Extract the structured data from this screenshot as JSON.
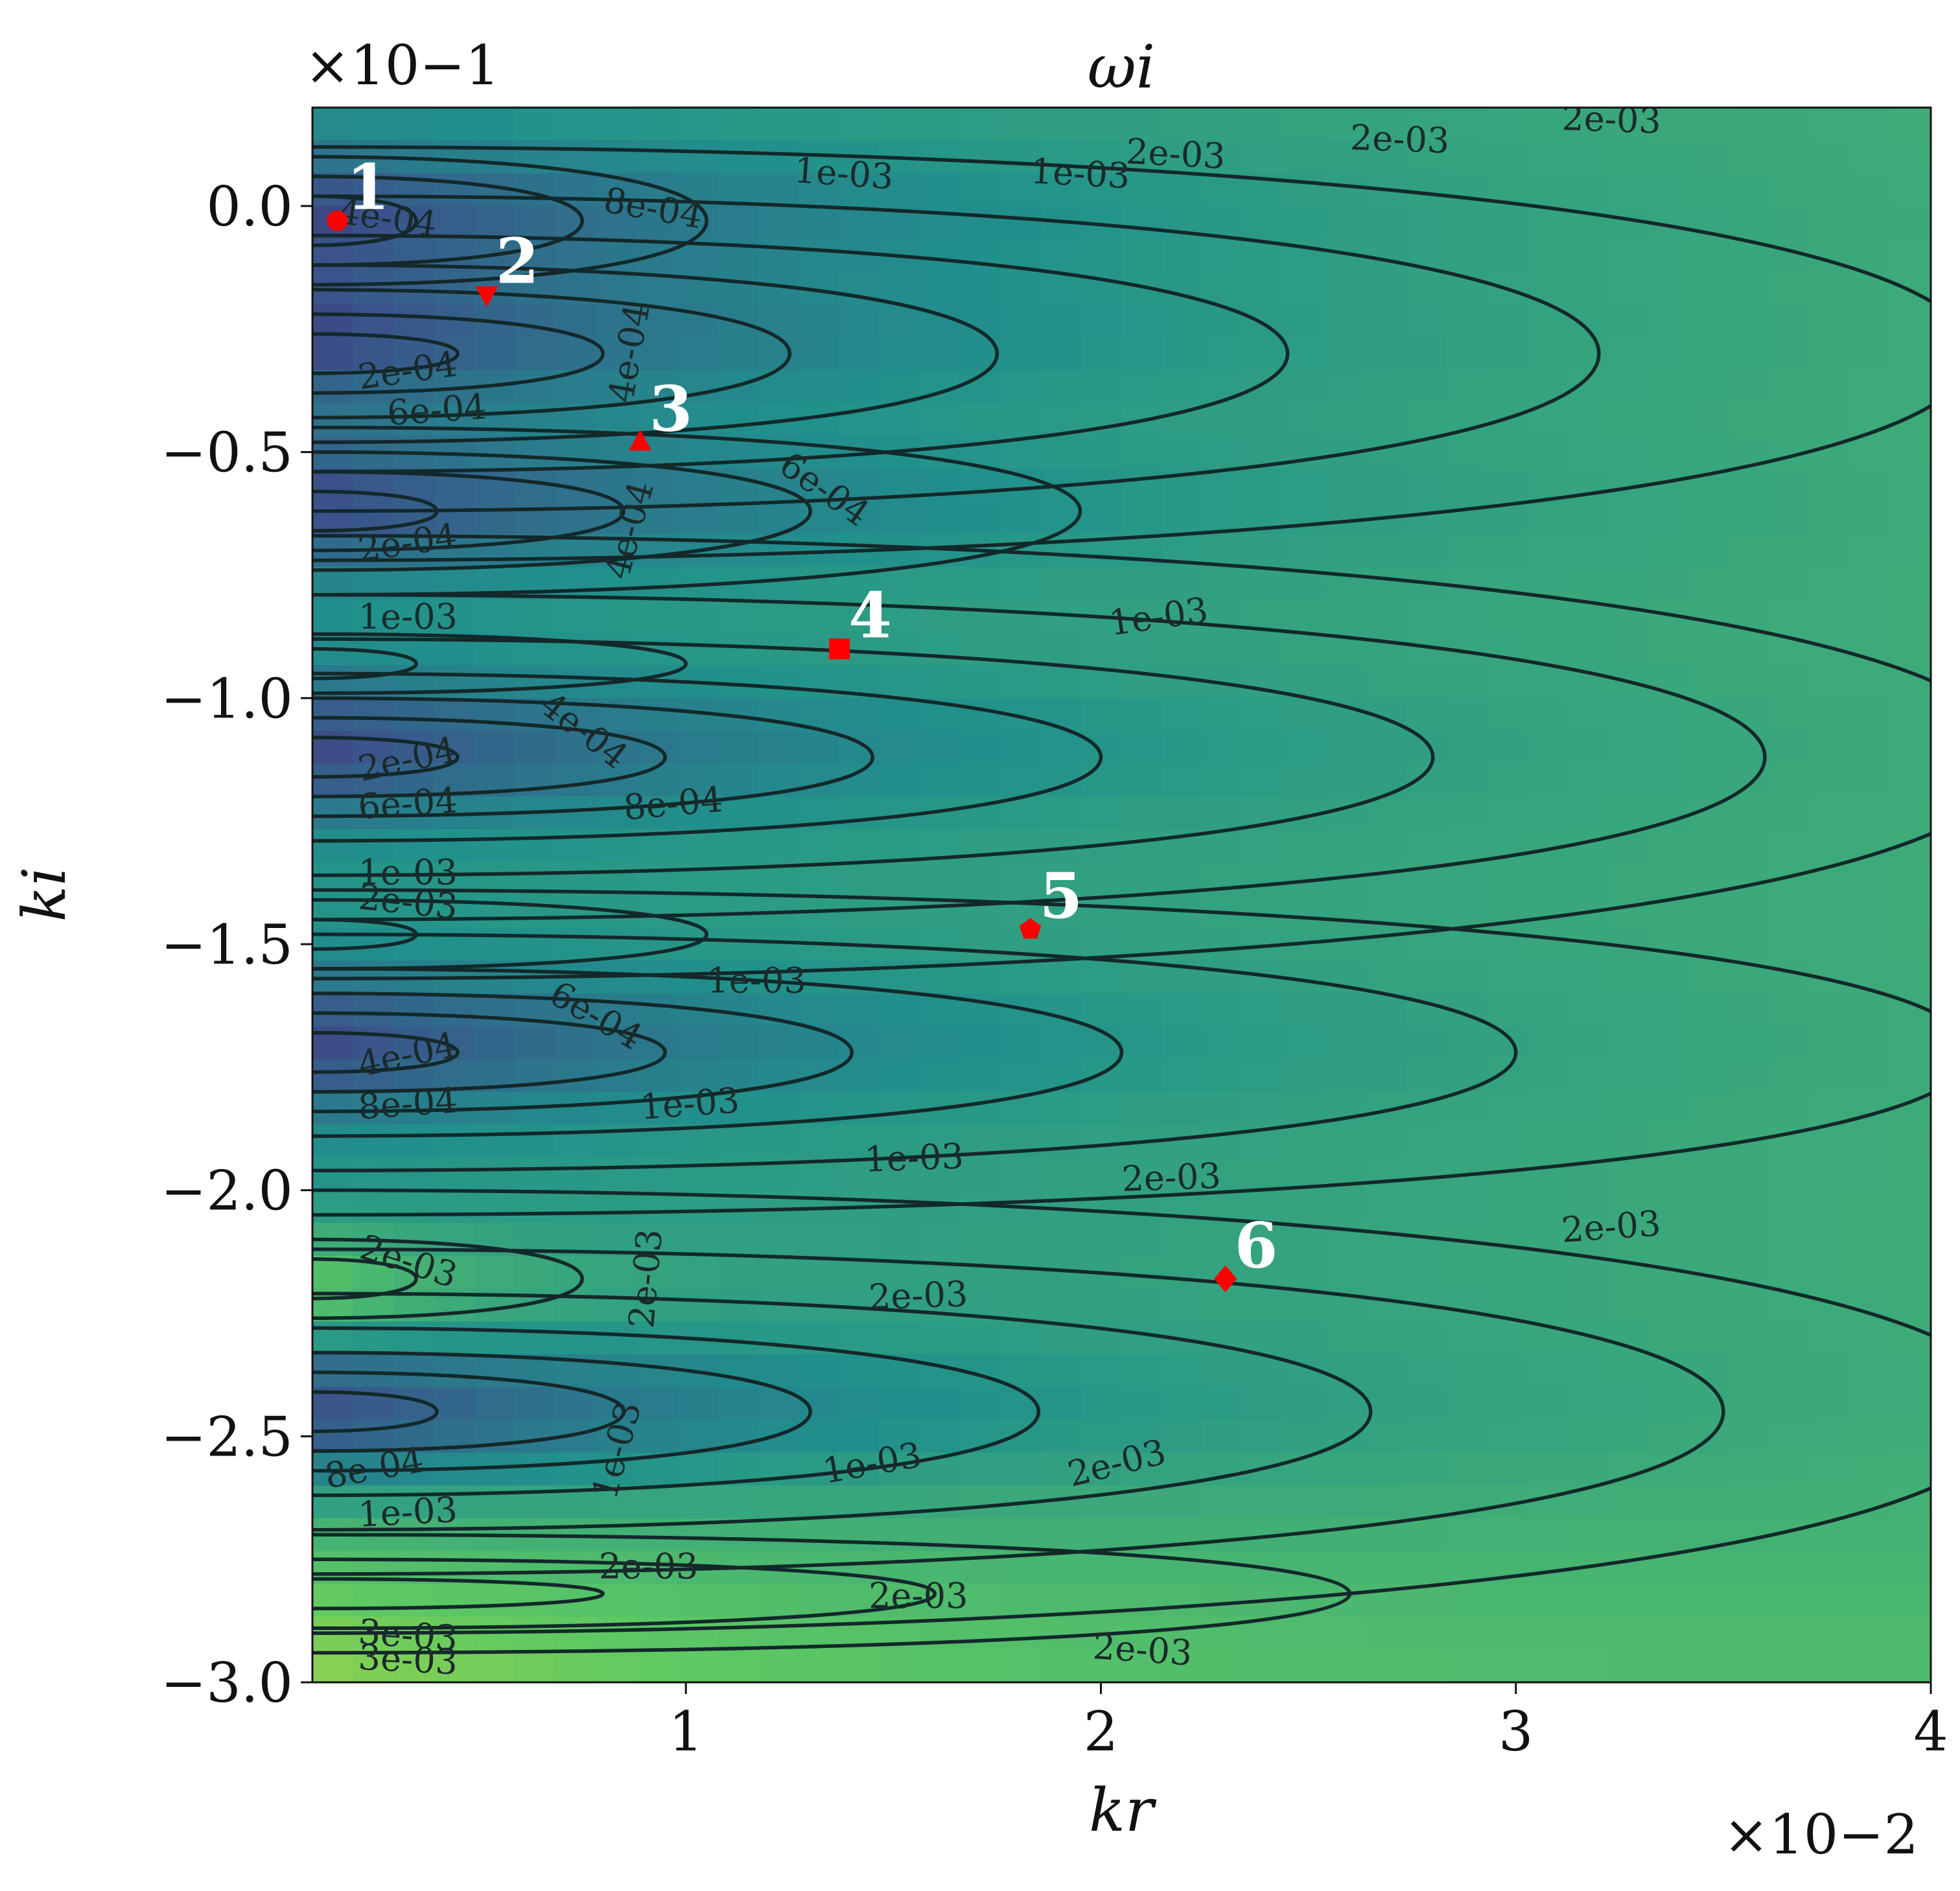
{
  "chart_data": {
    "type": "heatmap",
    "title": "ωi",
    "xlabel": "kr",
    "ylabel": "ki",
    "x_multiplier": "×10−2",
    "y_multiplier": "×10−1",
    "xlim": [
      0.1,
      4.0
    ],
    "ylim": [
      -3.0,
      0.2
    ],
    "x_ticks": [
      {
        "value": 1,
        "label": "1"
      },
      {
        "value": 2,
        "label": "2"
      },
      {
        "value": 3,
        "label": "3"
      },
      {
        "value": 4,
        "label": "4"
      }
    ],
    "y_ticks": [
      {
        "value": 0.0,
        "label": "0.0"
      },
      {
        "value": -0.5,
        "label": "−0.5"
      },
      {
        "value": -1.0,
        "label": "−1.0"
      },
      {
        "value": -1.5,
        "label": "−1.5"
      },
      {
        "value": -2.0,
        "label": "−2.0"
      },
      {
        "value": -2.5,
        "label": "−2.5"
      },
      {
        "value": -3.0,
        "label": "−3.0"
      }
    ],
    "colormap": "viridis",
    "colormap_stops": [
      "#440154",
      "#3b528b",
      "#21918c",
      "#5ec962",
      "#fde725"
    ],
    "contour_color": "#13282a",
    "marker_color": "#ff0000",
    "markers": [
      {
        "label": "1",
        "x": 0.16,
        "y": -0.03,
        "shape": "circle"
      },
      {
        "label": "2",
        "x": 0.52,
        "y": -0.18,
        "shape": "triangle-down"
      },
      {
        "label": "3",
        "x": 0.89,
        "y": -0.48,
        "shape": "triangle-up"
      },
      {
        "label": "4",
        "x": 1.37,
        "y": -0.9,
        "shape": "square"
      },
      {
        "label": "5",
        "x": 1.83,
        "y": -1.47,
        "shape": "pentagon"
      },
      {
        "label": "6",
        "x": 2.3,
        "y": -2.18,
        "shape": "diamond"
      }
    ],
    "contour_labels": [
      {
        "text": "4e-04",
        "x": 0.28,
        "y": -0.03,
        "angle": 8
      },
      {
        "text": "8e-04",
        "x": 0.92,
        "y": -0.01,
        "angle": 10
      },
      {
        "text": "1e-03",
        "x": 1.38,
        "y": 0.06,
        "angle": 4
      },
      {
        "text": "1e-03",
        "x": 1.95,
        "y": 0.06,
        "angle": 3
      },
      {
        "text": "2e-03",
        "x": 2.18,
        "y": 0.1,
        "angle": 3
      },
      {
        "text": "2e-03",
        "x": 2.72,
        "y": 0.13,
        "angle": 2
      },
      {
        "text": "2e-03",
        "x": 3.23,
        "y": 0.17,
        "angle": 2
      },
      {
        "text": "4e-04",
        "x": 0.87,
        "y": -0.3,
        "angle": -80
      },
      {
        "text": "2e-04",
        "x": 0.33,
        "y": -0.34,
        "angle": -8
      },
      {
        "text": "6e-04",
        "x": 0.4,
        "y": -0.42,
        "angle": -4
      },
      {
        "text": "6e-04",
        "x": 1.33,
        "y": -0.58,
        "angle": 35
      },
      {
        "text": "4e-04",
        "x": 0.87,
        "y": -0.66,
        "angle": -75
      },
      {
        "text": "2e-04",
        "x": 0.33,
        "y": -0.69,
        "angle": -8
      },
      {
        "text": "1e-03",
        "x": 0.33,
        "y": -0.84,
        "angle": 0
      },
      {
        "text": "1e-03",
        "x": 2.14,
        "y": -0.84,
        "angle": -8
      },
      {
        "text": "4e-04",
        "x": 0.75,
        "y": -1.07,
        "angle": 38
      },
      {
        "text": "2e-04",
        "x": 0.33,
        "y": -1.13,
        "angle": -12
      },
      {
        "text": "6e-04",
        "x": 0.33,
        "y": -1.22,
        "angle": -4
      },
      {
        "text": "8e-04",
        "x": 0.97,
        "y": -1.22,
        "angle": -5
      },
      {
        "text": "1e-03",
        "x": 0.33,
        "y": -1.36,
        "angle": 0
      },
      {
        "text": "2e-03",
        "x": 0.33,
        "y": -1.42,
        "angle": 6
      },
      {
        "text": "1e-03",
        "x": 1.17,
        "y": -1.58,
        "angle": 0
      },
      {
        "text": "6e-04",
        "x": 0.78,
        "y": -1.65,
        "angle": 30
      },
      {
        "text": "4e-04",
        "x": 0.33,
        "y": -1.73,
        "angle": -12
      },
      {
        "text": "8e-04",
        "x": 0.33,
        "y": -1.83,
        "angle": -4
      },
      {
        "text": "1e-03",
        "x": 1.01,
        "y": -1.83,
        "angle": -4
      },
      {
        "text": "1e-03",
        "x": 1.55,
        "y": -1.94,
        "angle": -2
      },
      {
        "text": "2e-03",
        "x": 2.17,
        "y": -1.98,
        "angle": -2
      },
      {
        "text": "2e-03",
        "x": 0.33,
        "y": -2.15,
        "angle": 18
      },
      {
        "text": "2e-03",
        "x": 0.91,
        "y": -2.18,
        "angle": -85
      },
      {
        "text": "2e-03",
        "x": 1.56,
        "y": -2.22,
        "angle": -2
      },
      {
        "text": "2e-03",
        "x": 3.23,
        "y": -2.08,
        "angle": -4
      },
      {
        "text": "1e-03",
        "x": 0.84,
        "y": -2.53,
        "angle": -75
      },
      {
        "text": "8e-04",
        "x": 0.25,
        "y": -2.57,
        "angle": -10
      },
      {
        "text": "1e-03",
        "x": 1.45,
        "y": -2.56,
        "angle": -10
      },
      {
        "text": "2e-03",
        "x": 2.04,
        "y": -2.56,
        "angle": -14
      },
      {
        "text": "1e-03",
        "x": 0.33,
        "y": -2.66,
        "angle": -3
      },
      {
        "text": "2e-03",
        "x": 0.91,
        "y": -2.77,
        "angle": 0
      },
      {
        "text": "2e-03",
        "x": 1.56,
        "y": -2.83,
        "angle": 0
      },
      {
        "text": "2e-03",
        "x": 2.1,
        "y": -2.94,
        "angle": 4
      },
      {
        "text": "3e-03",
        "x": 0.33,
        "y": -2.91,
        "angle": 4
      },
      {
        "text": "3e-03",
        "x": 0.33,
        "y": -2.96,
        "angle": 3
      }
    ]
  }
}
